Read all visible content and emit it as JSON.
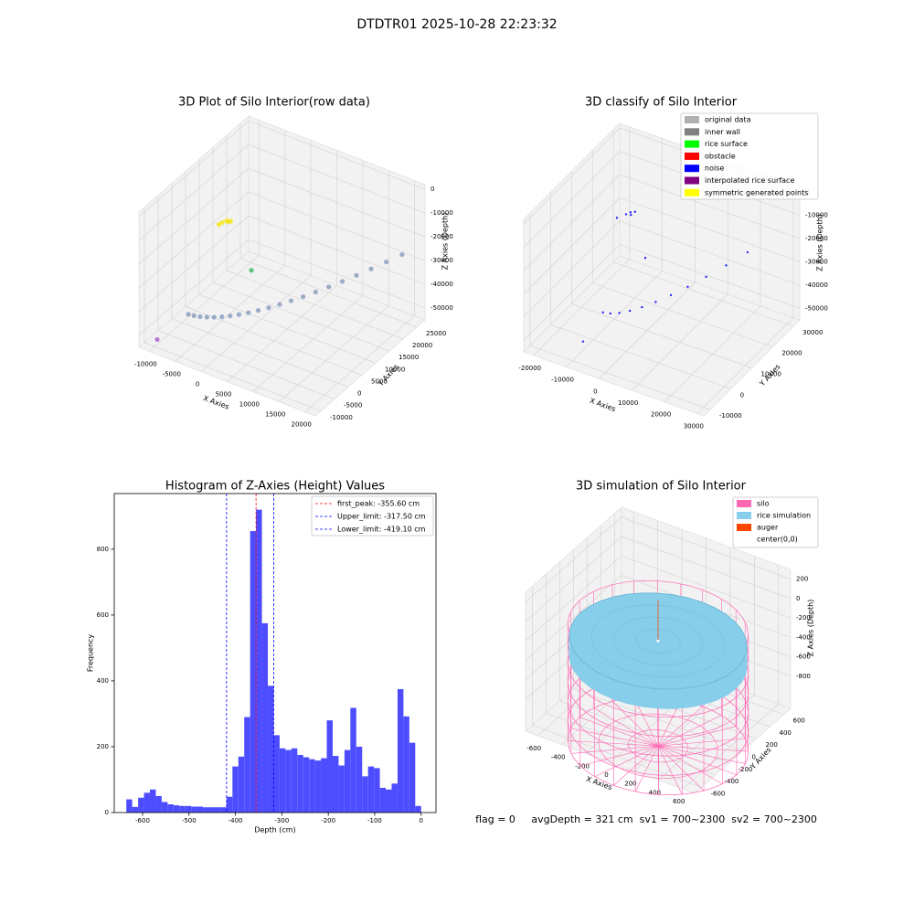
{
  "title": "DTDTR01 2025-10-28 22:23:32",
  "footer": "flag = 0     avgDepth = 321 cm  sv1 = 700~2300  sv2 = 700~2300",
  "chart_data": [
    {
      "type": "scatter3d",
      "title": "3D Plot of Silo Interior(row data)",
      "xlabel": "X Axies",
      "ylabel": "Y Axies",
      "zlabel": "Z Axies (Depth)",
      "xlim": [
        -12000,
        22000
      ],
      "ylim": [
        -12000,
        28000
      ],
      "zlim": [
        -55000,
        2000
      ],
      "xticks": [
        -10000,
        -5000,
        0,
        5000,
        10000,
        15000,
        20000
      ],
      "yticks": [
        -10000,
        -5000,
        0,
        5000,
        10000,
        15000,
        20000,
        25000
      ],
      "zticks": [
        -50000,
        -40000,
        -30000,
        -20000,
        -10000,
        0
      ],
      "grid": true,
      "series": [
        {
          "color": "#8c9fc2",
          "x": [
            -2480,
            -1440,
            -410,
            630,
            1670,
            2710,
            3740,
            4780,
            5820,
            6850,
            7890,
            8930,
            9960,
            11000,
            12040,
            13080,
            14110,
            15150,
            16190,
            17220,
            18260
          ],
          "y": [
            -12000,
            -11900,
            -11610,
            -11130,
            -10450,
            -9580,
            -8520,
            -7260,
            -5810,
            -4160,
            -2330,
            -290,
            1930,
            4350,
            6960,
            9770,
            12770,
            15960,
            19350,
            22930,
            26700
          ],
          "z": [
            -33000,
            -32820,
            -32640,
            -32450,
            -32270,
            -32090,
            -31910,
            -31720,
            -31540,
            -31360,
            -31180,
            -30990,
            -30810,
            -30630,
            -30450,
            -30260,
            -30080,
            -29900,
            -29720,
            -29530,
            -29350
          ]
        },
        {
          "color": "#f5e61c",
          "x": [
            -1100,
            -1500,
            -2000,
            -2500,
            -800
          ],
          "y": [
            0,
            200,
            -500,
            -800,
            300
          ],
          "z": [
            -5000,
            -5000,
            -5500,
            -6500,
            -4800
          ]
        },
        {
          "color": "#44bb66",
          "x": [
            -3300
          ],
          "y": [
            12560
          ],
          "z": [
            -40000
          ]
        },
        {
          "color": "#aa66cc",
          "x": [
            -8940
          ],
          "y": [
            -11120
          ],
          "z": [
            -50000
          ]
        }
      ]
    },
    {
      "type": "scatter3d",
      "title": "3D classify of Silo Interior",
      "xlabel": "X Axies",
      "ylabel": "Y Axies",
      "zlabel": "Z Axies (Depth)",
      "xlim": [
        -23000,
        32000
      ],
      "ylim": [
        -13000,
        33000
      ],
      "zlim": [
        -55000,
        2000
      ],
      "xticks": [
        -20000,
        -10000,
        0,
        10000,
        20000,
        30000
      ],
      "yticks": [
        -10000,
        0,
        10000,
        20000,
        30000
      ],
      "zticks": [
        -50000,
        -40000,
        -30000,
        -20000,
        -10000,
        0
      ],
      "grid": true,
      "legend": "upper right",
      "series": [
        {
          "name": "original data",
          "color": "#b0b0b0"
        },
        {
          "name": "inner wall",
          "color": "#808080"
        },
        {
          "name": "rice surface",
          "color": "#00ff00"
        },
        {
          "name": "obstacle",
          "color": "#ff0000"
        },
        {
          "name": "noise",
          "color": "#0000ff",
          "x": [
            1200,
            3220,
            5250,
            7270,
            9300,
            11320,
            13340,
            15370,
            17390,
            19420,
            21440,
            -3500,
            -4500,
            -2500,
            -6000,
            -3000,
            1150,
            -8980
          ],
          "y": [
            -13000,
            -12620,
            -11500,
            -9620,
            -6990,
            -3610,
            530,
            5410,
            11050,
            17440,
            24580,
            7600,
            7000,
            8200,
            5000,
            7000,
            7380,
            -6560
          ],
          "z": [
            -25900,
            -25680,
            -25450,
            -25230,
            -25000,
            -24780,
            -24550,
            -24330,
            -24100,
            -23880,
            -23650,
            -3700,
            -4500,
            -3500,
            -5000,
            -4000,
            -20800,
            -49300
          ]
        },
        {
          "name": "interpolated rice surface",
          "color": "#800080"
        },
        {
          "name": "symmetric generated points",
          "color": "#ffff00"
        }
      ]
    },
    {
      "type": "histogram",
      "title": "Histogram of Z-Axies (Height) Values",
      "xlabel": "Depth (cm)",
      "ylabel": "Frequency",
      "color": "#4d4dff",
      "bins": [
        -635,
        -622.3,
        -609.6,
        -596.9,
        -584.2,
        -571.5,
        -558.8,
        -546.1,
        -533.4,
        -520.7,
        -508,
        -495.3,
        -482.6,
        -469.9,
        -457.2,
        -444.5,
        -431.8,
        -419.1,
        -406.4,
        -393.7,
        -381,
        -368.3,
        -355.6,
        -342.9,
        -330.2,
        -317.5,
        -304.8,
        -292.1,
        -279.4,
        -266.7,
        -254,
        -241.3,
        -228.6,
        -215.9,
        -203.2,
        -190.5,
        -177.8,
        -165.1,
        -152.4,
        -139.7,
        -127,
        -114.3,
        -101.6,
        -88.9,
        -76.2,
        -63.5,
        -50.8,
        -38.1,
        -25.4,
        -12.7,
        0
      ],
      "values": [
        40,
        17,
        45,
        60,
        70,
        50,
        32,
        25,
        22,
        20,
        20,
        18,
        18,
        16,
        16,
        16,
        16,
        48,
        140,
        170,
        290,
        855,
        920,
        575,
        385,
        235,
        195,
        190,
        195,
        175,
        168,
        162,
        158,
        165,
        280,
        172,
        143,
        190,
        318,
        200,
        110,
        140,
        135,
        75,
        70,
        88,
        375,
        292,
        212,
        20
      ],
      "xlim": [
        -661,
        32
      ],
      "ylim": [
        0,
        969
      ],
      "xticks": [
        -600,
        -500,
        -400,
        -300,
        -200,
        -100,
        0
      ],
      "yticks": [
        0,
        200,
        400,
        600,
        800
      ],
      "legend": "upper right",
      "vlines": [
        {
          "label": "first_peak: -355.60 cm",
          "value": -355.6,
          "color": "#ff0000"
        },
        {
          "label": "Upper_limit: -317.50 cm",
          "value": -317.5,
          "color": "#0000ff"
        },
        {
          "label": "Lower_limit: -419.10 cm",
          "value": -419.1,
          "color": "#0000ff"
        }
      ]
    },
    {
      "type": "silo3d",
      "title": "3D simulation of Silo Interior",
      "xlabel": "X Axies",
      "ylabel": "Y Axies",
      "zlabel": "Z Axies (Depth)",
      "xlim": [
        -700,
        700
      ],
      "ylim": [
        -700,
        700
      ],
      "zlim": [
        -1130,
        300
      ],
      "xticks": [
        -600,
        -400,
        -200,
        0,
        200,
        400,
        600
      ],
      "yticks": [
        -600,
        -400,
        -200,
        0,
        200,
        400,
        600
      ],
      "zticks": [
        -800,
        -600,
        -400,
        -200,
        0,
        200
      ],
      "grid": true,
      "legend": "upper right",
      "series": [
        {
          "name": "silo",
          "color": "#ff69b4",
          "radius": 650,
          "z": [
            -1400,
            -200
          ]
        },
        {
          "name": "rice simulation",
          "color": "#87ceeb",
          "radius": 640,
          "z": -320
        },
        {
          "name": "auger",
          "color": "#ff4500",
          "z": [
            -320,
            100
          ]
        },
        {
          "name": "center(0,0)",
          "color": "#ffffff"
        }
      ]
    }
  ]
}
